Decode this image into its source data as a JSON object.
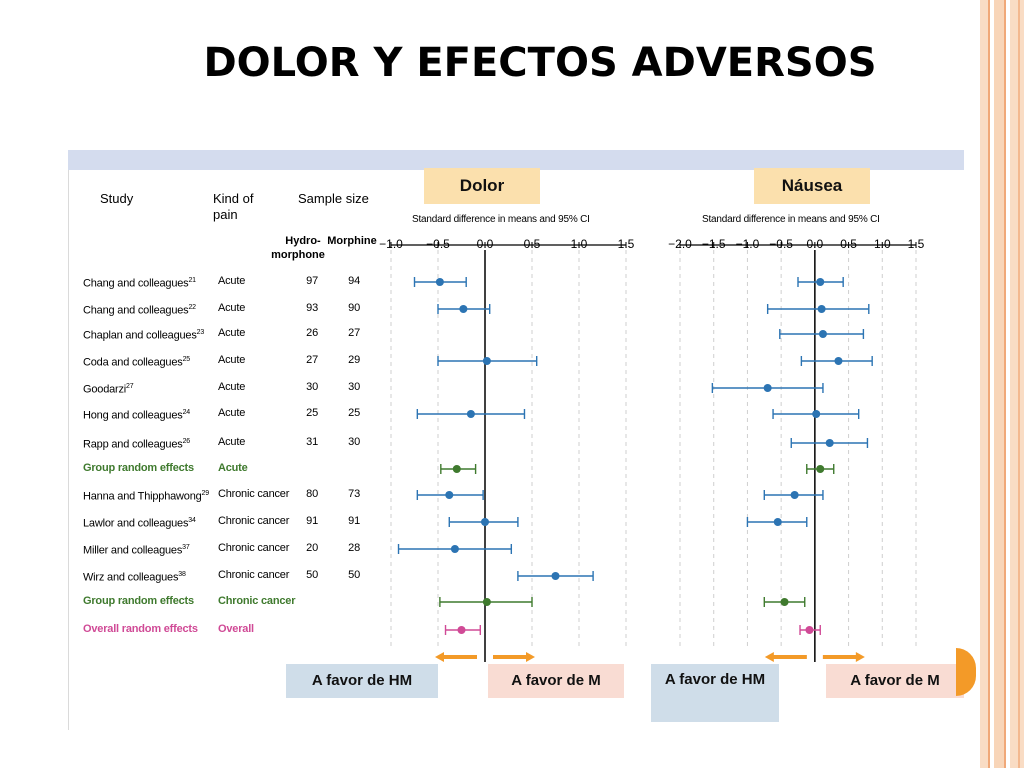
{
  "slide": {
    "title": "DOLOR Y EFECTOS ADVERSOS",
    "accent_colors": {
      "stripes": [
        "#f8d5b8",
        "#f3b88f",
        "#f9dcc4"
      ],
      "orange": "#f39a28"
    }
  },
  "table": {
    "headers": {
      "study": "Study",
      "kind_of_pain_1": "Kind of",
      "kind_of_pain_2": "pain",
      "sample_size": "Sample size",
      "hydro_1": "Hydro-",
      "hydro_2": "morphone",
      "morphine": "Morphine"
    },
    "rows": [
      {
        "study": "Chang and colleagues",
        "sup": "21",
        "kind": "Acute",
        "hm": "97",
        "m": "94",
        "style": "normal"
      },
      {
        "study": "Chang and colleagues",
        "sup": "22",
        "kind": "Acute",
        "hm": "93",
        "m": "90",
        "style": "normal"
      },
      {
        "study": "Chaplan and colleagues",
        "sup": "23",
        "kind": "Acute",
        "hm": "26",
        "m": "27",
        "style": "normal"
      },
      {
        "study": "Coda and colleagues",
        "sup": "25",
        "kind": "Acute",
        "hm": "27",
        "m": "29",
        "style": "normal"
      },
      {
        "study": "Goodarzi",
        "sup": "27",
        "kind": "Acute",
        "hm": "30",
        "m": "30",
        "style": "normal"
      },
      {
        "study": "Hong and colleagues",
        "sup": "24",
        "kind": "Acute",
        "hm": "25",
        "m": "25",
        "style": "normal"
      },
      {
        "study": "Rapp and colleagues",
        "sup": "26",
        "kind": "Acute",
        "hm": "31",
        "m": "30",
        "style": "normal"
      },
      {
        "study": "Group random effects",
        "sup": "",
        "kind": "Acute",
        "hm": "",
        "m": "",
        "style": "green"
      },
      {
        "study": "Hanna and Thipphawong",
        "sup": "29",
        "kind": "Chronic cancer",
        "hm": "80",
        "m": "73",
        "style": "normal"
      },
      {
        "study": "Lawlor and colleagues",
        "sup": "34",
        "kind": "Chronic cancer",
        "hm": "91",
        "m": "91",
        "style": "normal"
      },
      {
        "study": "Miller and colleagues",
        "sup": "37",
        "kind": "Chronic cancer",
        "hm": "20",
        "m": "28",
        "style": "normal"
      },
      {
        "study": "Wirz and colleagues",
        "sup": "38",
        "kind": "Chronic cancer",
        "hm": "50",
        "m": "50",
        "style": "normal"
      },
      {
        "study": "Group random effects",
        "sup": "",
        "kind": "Chronic cancer",
        "hm": "",
        "m": "",
        "style": "green"
      },
      {
        "study": "Overall random effects",
        "sup": "",
        "kind": "Overall",
        "hm": "",
        "m": "",
        "style": "pink"
      }
    ]
  },
  "panels": {
    "pain_tag": "Dolor",
    "nausea_tag": "Náusea",
    "axis_header": "Standard difference in means and 95% CI",
    "favor_hm": "A favor de HM",
    "favor_m": "A favor de M"
  },
  "chart_data": [
    {
      "type": "scatter",
      "title": "Dolor",
      "xlabel": "Standard difference in means and 95% CI",
      "xlim": [
        -1.0,
        1.5
      ],
      "xticks": [
        -1.0,
        -0.5,
        0.0,
        0.5,
        1.0,
        1.5
      ],
      "xtick_labels": [
        "−1.0",
        "−0.5",
        "0.0",
        "0.5",
        "1.0",
        "1.5"
      ],
      "series": [
        {
          "values": [
            {
              "x": -0.48,
              "lo": -0.75,
              "hi": -0.2,
              "color": "#2c74b3"
            },
            {
              "x": -0.23,
              "lo": -0.5,
              "hi": 0.05,
              "color": "#2c74b3"
            },
            {
              "x": 0.02,
              "lo": -0.5,
              "hi": 0.55,
              "color": "#2c74b3"
            },
            {
              "x": -0.15,
              "lo": -0.72,
              "hi": 0.42,
              "color": "#2c74b3"
            },
            {
              "x": -0.3,
              "lo": -0.47,
              "hi": -0.1,
              "color": "#3f7a2e"
            },
            {
              "x": -0.38,
              "lo": -0.72,
              "hi": -0.02,
              "color": "#2c74b3"
            },
            {
              "x": 0.0,
              "lo": -0.38,
              "hi": 0.35,
              "color": "#2c74b3"
            },
            {
              "x": -0.32,
              "lo": -0.92,
              "hi": 0.28,
              "color": "#2c74b3"
            },
            {
              "x": 0.75,
              "lo": 0.35,
              "hi": 1.15,
              "color": "#2c74b3"
            },
            {
              "x": 0.02,
              "lo": -0.48,
              "hi": 0.5,
              "color": "#3f7a2e"
            },
            {
              "x": -0.25,
              "lo": -0.42,
              "hi": -0.05,
              "color": "#d04a96"
            }
          ]
        }
      ],
      "row_index": [
        0,
        1,
        3,
        5,
        7,
        8,
        9,
        10,
        11,
        12,
        13
      ]
    },
    {
      "type": "scatter",
      "title": "Náusea",
      "xlabel": "Standard difference in means and 95% CI",
      "xlim": [
        -2.0,
        1.5
      ],
      "xticks": [
        -2.0,
        -1.5,
        -1.0,
        -0.5,
        0.0,
        0.5,
        1.0,
        1.5
      ],
      "xtick_labels": [
        "−2.0",
        "−1.5",
        "−1.0",
        "−0.5",
        "0.0",
        "0.5",
        "1.0",
        "1.5"
      ],
      "series": [
        {
          "values": [
            {
              "x": 0.08,
              "lo": -0.25,
              "hi": 0.42,
              "color": "#2c74b3"
            },
            {
              "x": 0.1,
              "lo": -0.7,
              "hi": 0.8,
              "color": "#2c74b3"
            },
            {
              "x": 0.12,
              "lo": -0.52,
              "hi": 0.72,
              "color": "#2c74b3"
            },
            {
              "x": 0.35,
              "lo": -0.2,
              "hi": 0.85,
              "color": "#2c74b3"
            },
            {
              "x": -0.7,
              "lo": -1.52,
              "hi": 0.12,
              "color": "#2c74b3"
            },
            {
              "x": 0.02,
              "lo": -0.62,
              "hi": 0.65,
              "color": "#2c74b3"
            },
            {
              "x": 0.22,
              "lo": -0.35,
              "hi": 0.78,
              "color": "#2c74b3"
            },
            {
              "x": 0.08,
              "lo": -0.12,
              "hi": 0.28,
              "color": "#3f7a2e"
            },
            {
              "x": -0.3,
              "lo": -0.75,
              "hi": 0.12,
              "color": "#2c74b3"
            },
            {
              "x": -0.55,
              "lo": -1.0,
              "hi": -0.12,
              "color": "#2c74b3"
            },
            {
              "x": -0.45,
              "lo": -0.75,
              "hi": -0.15,
              "color": "#3f7a2e"
            },
            {
              "x": -0.08,
              "lo": -0.22,
              "hi": 0.08,
              "color": "#d04a96"
            }
          ]
        }
      ],
      "row_index": [
        0,
        1,
        2,
        3,
        4,
        5,
        6,
        7,
        8,
        9,
        12,
        13
      ]
    }
  ]
}
